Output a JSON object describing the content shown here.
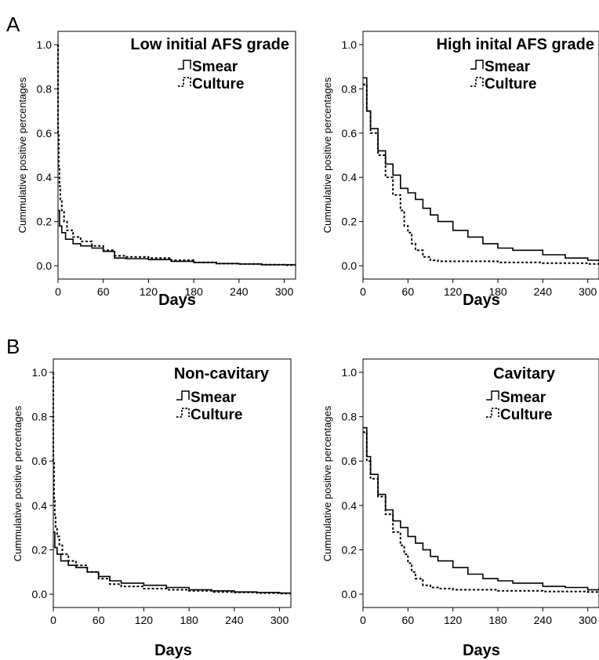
{
  "panel_letters": [
    "A",
    "B"
  ],
  "legend": {
    "smear": "Smear",
    "culture": "Culture"
  },
  "chart_data": [
    {
      "type": "line",
      "panel": "A",
      "title": "Low initial AFS grade",
      "xlabel": "Days",
      "ylabel": "Cummulative positive percentages",
      "xlim": [
        0,
        315
      ],
      "ylim": [
        0,
        1.0
      ],
      "xticks": [
        0,
        60,
        120,
        180,
        240,
        300
      ],
      "yticks": [
        0.0,
        0.2,
        0.4,
        0.6,
        0.8,
        1.0
      ],
      "legend_position": "top-right",
      "series": [
        {
          "name": "Smear",
          "style": "solid",
          "x": [
            0,
            2,
            5,
            10,
            20,
            30,
            45,
            60,
            75,
            90,
            120,
            150,
            180,
            210,
            240,
            270,
            300,
            315
          ],
          "y": [
            0.25,
            0.18,
            0.15,
            0.12,
            0.1,
            0.09,
            0.08,
            0.065,
            0.035,
            0.032,
            0.028,
            0.02,
            0.015,
            0.01,
            0.008,
            0.005,
            0.005,
            0.005
          ]
        },
        {
          "name": "Culture",
          "style": "dashed",
          "x": [
            0,
            0,
            1,
            2,
            3,
            5,
            8,
            12,
            20,
            30,
            45,
            60,
            75,
            90,
            120,
            150,
            180,
            210,
            240,
            270,
            300,
            315
          ],
          "y": [
            1.0,
            0.6,
            0.45,
            0.36,
            0.3,
            0.25,
            0.2,
            0.16,
            0.13,
            0.11,
            0.09,
            0.07,
            0.045,
            0.04,
            0.035,
            0.025,
            0.015,
            0.01,
            0.008,
            0.005,
            0.003,
            0.003
          ]
        }
      ]
    },
    {
      "type": "line",
      "panel": "A",
      "title": "High inital AFS grade",
      "xlabel": "Days",
      "ylabel": "Cummulative positive percentages",
      "xlim": [
        0,
        315
      ],
      "ylim": [
        0,
        1.0
      ],
      "xticks": [
        0,
        60,
        120,
        180,
        240,
        300
      ],
      "yticks": [
        0.0,
        0.2,
        0.4,
        0.6,
        0.8,
        1.0
      ],
      "legend_position": "top-right",
      "series": [
        {
          "name": "Smear",
          "style": "solid",
          "x": [
            0,
            5,
            10,
            20,
            30,
            40,
            50,
            60,
            70,
            80,
            90,
            100,
            120,
            140,
            160,
            180,
            200,
            240,
            270,
            300,
            315
          ],
          "y": [
            0.85,
            0.7,
            0.62,
            0.52,
            0.46,
            0.41,
            0.35,
            0.33,
            0.3,
            0.26,
            0.23,
            0.2,
            0.16,
            0.13,
            0.1,
            0.08,
            0.07,
            0.05,
            0.035,
            0.025,
            0.02
          ]
        },
        {
          "name": "Culture",
          "style": "dashed",
          "x": [
            0,
            5,
            10,
            20,
            30,
            40,
            50,
            55,
            60,
            65,
            70,
            80,
            90,
            100,
            120,
            180,
            240,
            300,
            315
          ],
          "y": [
            0.82,
            0.7,
            0.6,
            0.5,
            0.4,
            0.32,
            0.25,
            0.18,
            0.15,
            0.1,
            0.07,
            0.04,
            0.025,
            0.02,
            0.02,
            0.015,
            0.012,
            0.008,
            0.008
          ]
        }
      ]
    },
    {
      "type": "line",
      "panel": "B",
      "title": "Non-cavitary",
      "xlabel": "Days",
      "ylabel": "Cummulative positive percentages",
      "xlim": [
        0,
        315
      ],
      "ylim": [
        0,
        1.0
      ],
      "xticks": [
        0,
        60,
        120,
        180,
        240,
        300
      ],
      "yticks": [
        0.0,
        0.2,
        0.4,
        0.6,
        0.8,
        1.0
      ],
      "legend_position": "top-right",
      "series": [
        {
          "name": "Smear",
          "style": "solid",
          "x": [
            0,
            2,
            5,
            10,
            20,
            30,
            45,
            60,
            75,
            90,
            120,
            150,
            180,
            210,
            240,
            270,
            300,
            315
          ],
          "y": [
            0.28,
            0.21,
            0.18,
            0.15,
            0.13,
            0.12,
            0.1,
            0.08,
            0.06,
            0.05,
            0.04,
            0.03,
            0.02,
            0.015,
            0.01,
            0.008,
            0.005,
            0.005
          ]
        },
        {
          "name": "Culture",
          "style": "dashed",
          "x": [
            0,
            0,
            1,
            2,
            3,
            5,
            8,
            12,
            20,
            30,
            45,
            60,
            75,
            90,
            120,
            150,
            180,
            210,
            240,
            270,
            300,
            315
          ],
          "y": [
            1.0,
            0.6,
            0.42,
            0.35,
            0.3,
            0.26,
            0.22,
            0.18,
            0.15,
            0.13,
            0.1,
            0.07,
            0.045,
            0.035,
            0.025,
            0.02,
            0.015,
            0.01,
            0.008,
            0.005,
            0.003,
            0.003
          ]
        }
      ]
    },
    {
      "type": "line",
      "panel": "B",
      "title": "Cavitary",
      "xlabel": "Days",
      "ylabel": "Cummulative positive percentages",
      "xlim": [
        0,
        315
      ],
      "ylim": [
        0,
        1.0
      ],
      "xticks": [
        0,
        60,
        120,
        180,
        240,
        300
      ],
      "yticks": [
        0.0,
        0.2,
        0.4,
        0.6,
        0.8,
        1.0
      ],
      "legend_position": "top-right",
      "series": [
        {
          "name": "Smear",
          "style": "solid",
          "x": [
            0,
            5,
            10,
            20,
            30,
            40,
            50,
            60,
            70,
            80,
            90,
            100,
            120,
            140,
            160,
            180,
            200,
            240,
            270,
            300,
            315
          ],
          "y": [
            0.75,
            0.62,
            0.54,
            0.45,
            0.38,
            0.33,
            0.3,
            0.26,
            0.23,
            0.2,
            0.17,
            0.15,
            0.12,
            0.09,
            0.07,
            0.06,
            0.05,
            0.035,
            0.03,
            0.02,
            0.02
          ]
        },
        {
          "name": "Culture",
          "style": "dashed",
          "x": [
            0,
            5,
            10,
            20,
            30,
            40,
            50,
            55,
            60,
            65,
            70,
            80,
            90,
            100,
            120,
            180,
            240,
            300,
            315
          ],
          "y": [
            0.73,
            0.6,
            0.52,
            0.44,
            0.36,
            0.28,
            0.22,
            0.18,
            0.14,
            0.1,
            0.07,
            0.04,
            0.03,
            0.025,
            0.02,
            0.015,
            0.012,
            0.01,
            0.01
          ]
        }
      ]
    }
  ]
}
